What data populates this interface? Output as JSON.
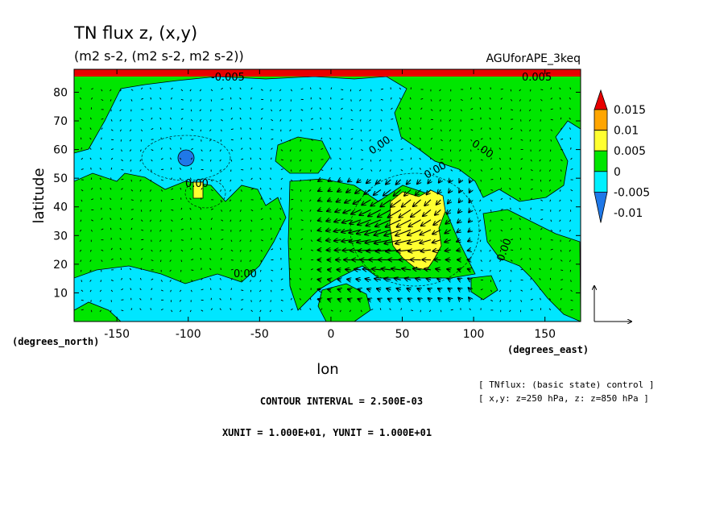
{
  "chart_data": {
    "type": "heatmap",
    "title": "TN flux z, (x,y)",
    "subtitle": "(m2 s-2, (m2 s-2, m2 s-2))",
    "dataset": "AGUforAPE_3keq",
    "xlabel": "lon",
    "ylabel": "latitude",
    "x_unit_label": "(degrees_east)",
    "y_unit_label": "(degrees_north)",
    "xlim": [
      -180,
      175
    ],
    "ylim": [
      0,
      88
    ],
    "x_ticks": [
      -150,
      -100,
      -50,
      0,
      50,
      100,
      150
    ],
    "x_tick_labels": [
      "-150",
      "-100",
      "-50",
      "0",
      "50",
      "100",
      "150"
    ],
    "y_ticks": [
      10,
      20,
      30,
      40,
      50,
      60,
      70,
      80
    ],
    "y_tick_labels": [
      "10",
      "20",
      "30",
      "40",
      "50",
      "60",
      "70",
      "80"
    ],
    "colorbar": {
      "levels": [
        -0.01,
        -0.005,
        0,
        0.005,
        0.01,
        0.015
      ],
      "labels": [
        "-0.01",
        "-0.005",
        "0",
        "0.005",
        "0.01",
        "0.015"
      ],
      "colors": [
        "#1f78e8",
        "#00f0ff",
        "#00e600",
        "#ffff30",
        "#ffa500",
        "#e80000"
      ]
    },
    "contour_labels": [
      "0.00",
      "0.00",
      "0.00",
      "0.00",
      "0.00",
      "0.00",
      "-0.005",
      "0.005"
    ],
    "contour_interval": "CONTOUR INTERVAL = 2.500E-03",
    "vector_units": "XUNIT = 1.000E+01, YUNIT = 1.000E+01",
    "notes": [
      "[ TNflux: (basic state) control ]",
      "[ x,y: z=250 hPa, z: z=850 hPa ]"
    ],
    "regions": [
      {
        "value": 0.005,
        "lon": [
          45,
          80
        ],
        "lat": [
          23,
          45
        ]
      },
      {
        "value": -0.005,
        "lon": [
          -103,
          -97
        ],
        "lat": [
          55,
          60
        ]
      },
      {
        "value": 0.005,
        "lon": [
          -95,
          -90
        ],
        "lat": [
          43,
          49
        ]
      },
      {
        "value": 0.015,
        "lon": [
          -180,
          175
        ],
        "lat": [
          85,
          88
        ]
      }
    ],
    "vectors_strong": {
      "lon": [
        -10,
        100
      ],
      "lat": [
        5,
        50
      ]
    }
  }
}
